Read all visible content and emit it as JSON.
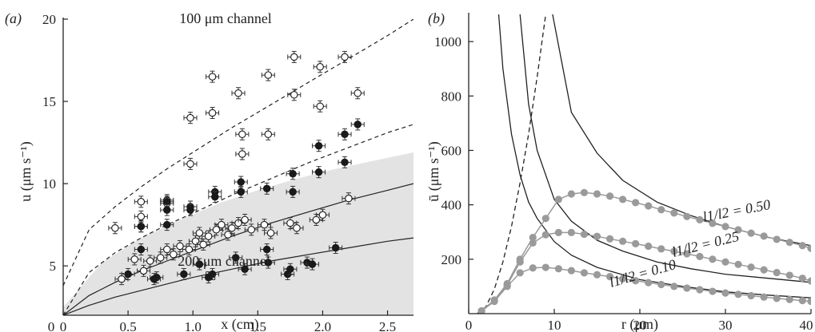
{
  "chart_data": [
    {
      "type": "scatter",
      "panel_label": "(a)",
      "xlabel": "x (cm)",
      "ylabel": "u (μm s⁻¹)",
      "xlim": [
        0,
        2.7
      ],
      "ylim": [
        2,
        20
      ],
      "xticks": [
        0,
        0.5,
        1.0,
        1.5,
        2.0,
        2.5
      ],
      "xtick_labels": [
        "0",
        "0.5",
        "1.0",
        "1.5",
        "2.0",
        "2.5"
      ],
      "yticks": [
        5,
        10,
        15,
        20
      ],
      "ytick_labels": [
        "5",
        "10",
        "15",
        "20"
      ],
      "annotations": [
        "100 μm channel",
        "200 μm channel"
      ],
      "shaded_band": {
        "x": [
          0,
          0.3,
          0.6,
          0.9,
          1.2,
          1.5,
          1.8,
          2.1,
          2.4,
          2.7
        ],
        "upper": [
          2.5,
          5.2,
          6.7,
          7.8,
          8.8,
          9.6,
          10.3,
          10.9,
          11.4,
          11.9
        ]
      },
      "series": [
        {
          "style": "dashed",
          "x": [
            0,
            0.2,
            0.4,
            0.6,
            0.8,
            1.0,
            1.3,
            1.6,
            1.9,
            2.2,
            2.5,
            2.7
          ],
          "values": [
            3.8,
            7.2,
            8.6,
            9.8,
            10.9,
            11.9,
            13.4,
            14.8,
            16.2,
            17.6,
            19.0,
            20.0
          ]
        },
        {
          "style": "dashed",
          "x": [
            0,
            0.2,
            0.4,
            0.6,
            0.8,
            1.0,
            1.3,
            1.6,
            1.9,
            2.2,
            2.5,
            2.7
          ],
          "values": [
            2.0,
            4.6,
            5.8,
            6.7,
            7.5,
            8.2,
            9.3,
            10.3,
            11.3,
            12.2,
            13.1,
            13.6
          ]
        },
        {
          "style": "solid",
          "x": [
            0,
            0.2,
            0.4,
            0.6,
            0.8,
            1.0,
            1.3,
            1.6,
            1.9,
            2.2,
            2.5,
            2.7
          ],
          "values": [
            2.0,
            3.2,
            4.0,
            4.7,
            5.3,
            5.9,
            6.8,
            7.6,
            8.3,
            9.0,
            9.6,
            10.0
          ]
        },
        {
          "style": "solid",
          "x": [
            0,
            0.2,
            0.4,
            0.6,
            0.8,
            1.0,
            1.3,
            1.6,
            1.9,
            2.2,
            2.5,
            2.7
          ],
          "values": [
            2.0,
            2.6,
            3.1,
            3.5,
            3.9,
            4.3,
            4.8,
            5.3,
            5.7,
            6.1,
            6.5,
            6.7
          ]
        },
        {
          "marker": "open",
          "x": [
            0.4,
            0.6,
            0.6,
            0.6,
            0.8,
            0.8,
            0.98,
            0.98,
            1.15,
            1.15,
            1.35,
            1.38,
            1.38,
            1.58,
            1.58,
            1.78,
            1.78,
            1.98,
            1.98,
            2.17,
            2.27,
            0.45,
            0.55,
            0.62,
            0.67,
            0.75,
            0.8,
            0.85,
            0.9,
            0.97,
            1.02,
            1.05,
            1.08,
            1.12,
            1.18,
            1.22,
            1.27,
            1.3,
            1.35,
            1.4,
            1.45,
            1.55,
            1.6,
            1.75,
            1.8,
            1.95,
            2.0,
            2.2
          ],
          "values": [
            7.3,
            8.9,
            8.0,
            7.4,
            9.0,
            8.8,
            14.0,
            11.2,
            16.5,
            14.3,
            15.5,
            13.0,
            11.8,
            16.6,
            13.0,
            17.7,
            15.4,
            17.1,
            14.7,
            17.7,
            15.5,
            4.2,
            5.4,
            4.7,
            5.3,
            5.5,
            6.0,
            5.7,
            6.2,
            6.0,
            6.5,
            7.0,
            6.3,
            6.8,
            7.2,
            7.5,
            6.9,
            7.3,
            7.6,
            7.8,
            7.2,
            7.5,
            7.0,
            7.6,
            7.3,
            7.8,
            8.1,
            9.1
          ]
        },
        {
          "marker": "filled",
          "x": [
            0.5,
            0.6,
            0.6,
            0.8,
            0.8,
            0.8,
            0.98,
            0.98,
            1.17,
            1.17,
            1.37,
            1.37,
            1.57,
            1.57,
            1.77,
            1.77,
            1.97,
            1.97,
            2.17,
            2.17,
            2.27,
            0.72,
            0.93,
            1.05,
            1.15,
            1.33,
            1.4,
            1.58,
            1.73,
            1.88,
            2.1,
            0.7,
            1.12,
            1.75,
            1.92
          ],
          "values": [
            4.5,
            6.0,
            7.4,
            8.9,
            8.4,
            7.5,
            8.6,
            8.4,
            9.5,
            9.2,
            10.1,
            9.5,
            9.7,
            6.0,
            10.6,
            9.5,
            12.3,
            10.7,
            13.0,
            11.3,
            13.6,
            4.3,
            4.5,
            5.1,
            4.5,
            5.5,
            4.8,
            5.2,
            4.5,
            5.2,
            6.1,
            4.2,
            4.3,
            4.8,
            5.1
          ]
        }
      ]
    },
    {
      "type": "line",
      "panel_label": "(b)",
      "xlabel": "r (μm)",
      "ylabel": "ū (μm s⁻¹)",
      "xlim": [
        0,
        40
      ],
      "ylim": [
        0,
        1100
      ],
      "xticks": [
        0,
        10,
        20,
        30,
        40
      ],
      "xtick_labels": [
        "0",
        "10",
        "20",
        "30",
        "40"
      ],
      "yticks": [
        200,
        400,
        600,
        800,
        1000
      ],
      "ytick_labels": [
        "200",
        "400",
        "600",
        "800",
        "1000"
      ],
      "black_curves": [
        {
          "style": "solid",
          "x": [
            9.8,
            12,
            15,
            18,
            22,
            26,
            30,
            35,
            40
          ],
          "values": [
            1100,
            740,
            590,
            490,
            410,
            360,
            320,
            280,
            250
          ]
        },
        {
          "style": "solid",
          "x": [
            6,
            7,
            8,
            10,
            12,
            15,
            18,
            22,
            26,
            30,
            35,
            40
          ],
          "values": [
            1100,
            770,
            600,
            420,
            340,
            270,
            230,
            190,
            165,
            145,
            130,
            115
          ]
        },
        {
          "style": "solid",
          "x": [
            3.5,
            4,
            5,
            6,
            7,
            8,
            10,
            12,
            15,
            20,
            25,
            30,
            35,
            40
          ],
          "values": [
            1100,
            900,
            660,
            510,
            410,
            350,
            265,
            215,
            170,
            125,
            100,
            80,
            68,
            58
          ]
        },
        {
          "style": "dashed",
          "x": [
            1,
            2,
            3,
            4,
            5,
            6,
            7,
            8,
            9
          ],
          "values": [
            0,
            25,
            90,
            190,
            320,
            480,
            660,
            870,
            1100
          ]
        }
      ],
      "series": [
        {
          "name": "l1/l2 = 0.50",
          "x": [
            1.5,
            3,
            4.5,
            6,
            7.5,
            9,
            10.5,
            12,
            13.5,
            15,
            16.5,
            18,
            19.5,
            21,
            22.5,
            24,
            25.5,
            27,
            28.5,
            30,
            31.5,
            33,
            34.5,
            36,
            37.5,
            39,
            40
          ],
          "values": [
            10,
            50,
            110,
            200,
            280,
            350,
            420,
            440,
            445,
            440,
            432,
            420,
            408,
            396,
            382,
            370,
            357,
            345,
            332,
            320,
            308,
            296,
            285,
            273,
            262,
            250,
            240
          ]
        },
        {
          "name": "l1/l2 = 0.25",
          "x": [
            1.5,
            3,
            4.5,
            6,
            7.5,
            9,
            10.5,
            12,
            13.5,
            15,
            16.5,
            18,
            19.5,
            21,
            22.5,
            24,
            25.5,
            27,
            28.5,
            30,
            31.5,
            33,
            34.5,
            36,
            37.5,
            39,
            40
          ],
          "values": [
            10,
            50,
            105,
            190,
            260,
            290,
            298,
            298,
            292,
            284,
            275,
            266,
            257,
            248,
            238,
            229,
            220,
            210,
            200,
            190,
            181,
            171,
            161,
            151,
            141,
            130,
            120
          ]
        },
        {
          "name": "l1/l2 = 0.10",
          "x": [
            1.5,
            3,
            4.5,
            6,
            7.5,
            9,
            10.5,
            12,
            13.5,
            15,
            16.5,
            18,
            19.5,
            21,
            22.5,
            24,
            25.5,
            27,
            28.5,
            30,
            31.5,
            33,
            34.5,
            36,
            37.5,
            39,
            40
          ],
          "values": [
            10,
            45,
            100,
            150,
            168,
            170,
            165,
            158,
            150,
            143,
            136,
            128,
            121,
            114,
            107,
            100,
            94,
            88,
            82,
            76,
            71,
            66,
            61,
            56,
            52,
            48,
            45
          ]
        }
      ],
      "curve_labels": [
        "l1/l2 = 0.50",
        "l1/l2 = 0.25",
        "l1/l2 = 0.10"
      ]
    }
  ]
}
